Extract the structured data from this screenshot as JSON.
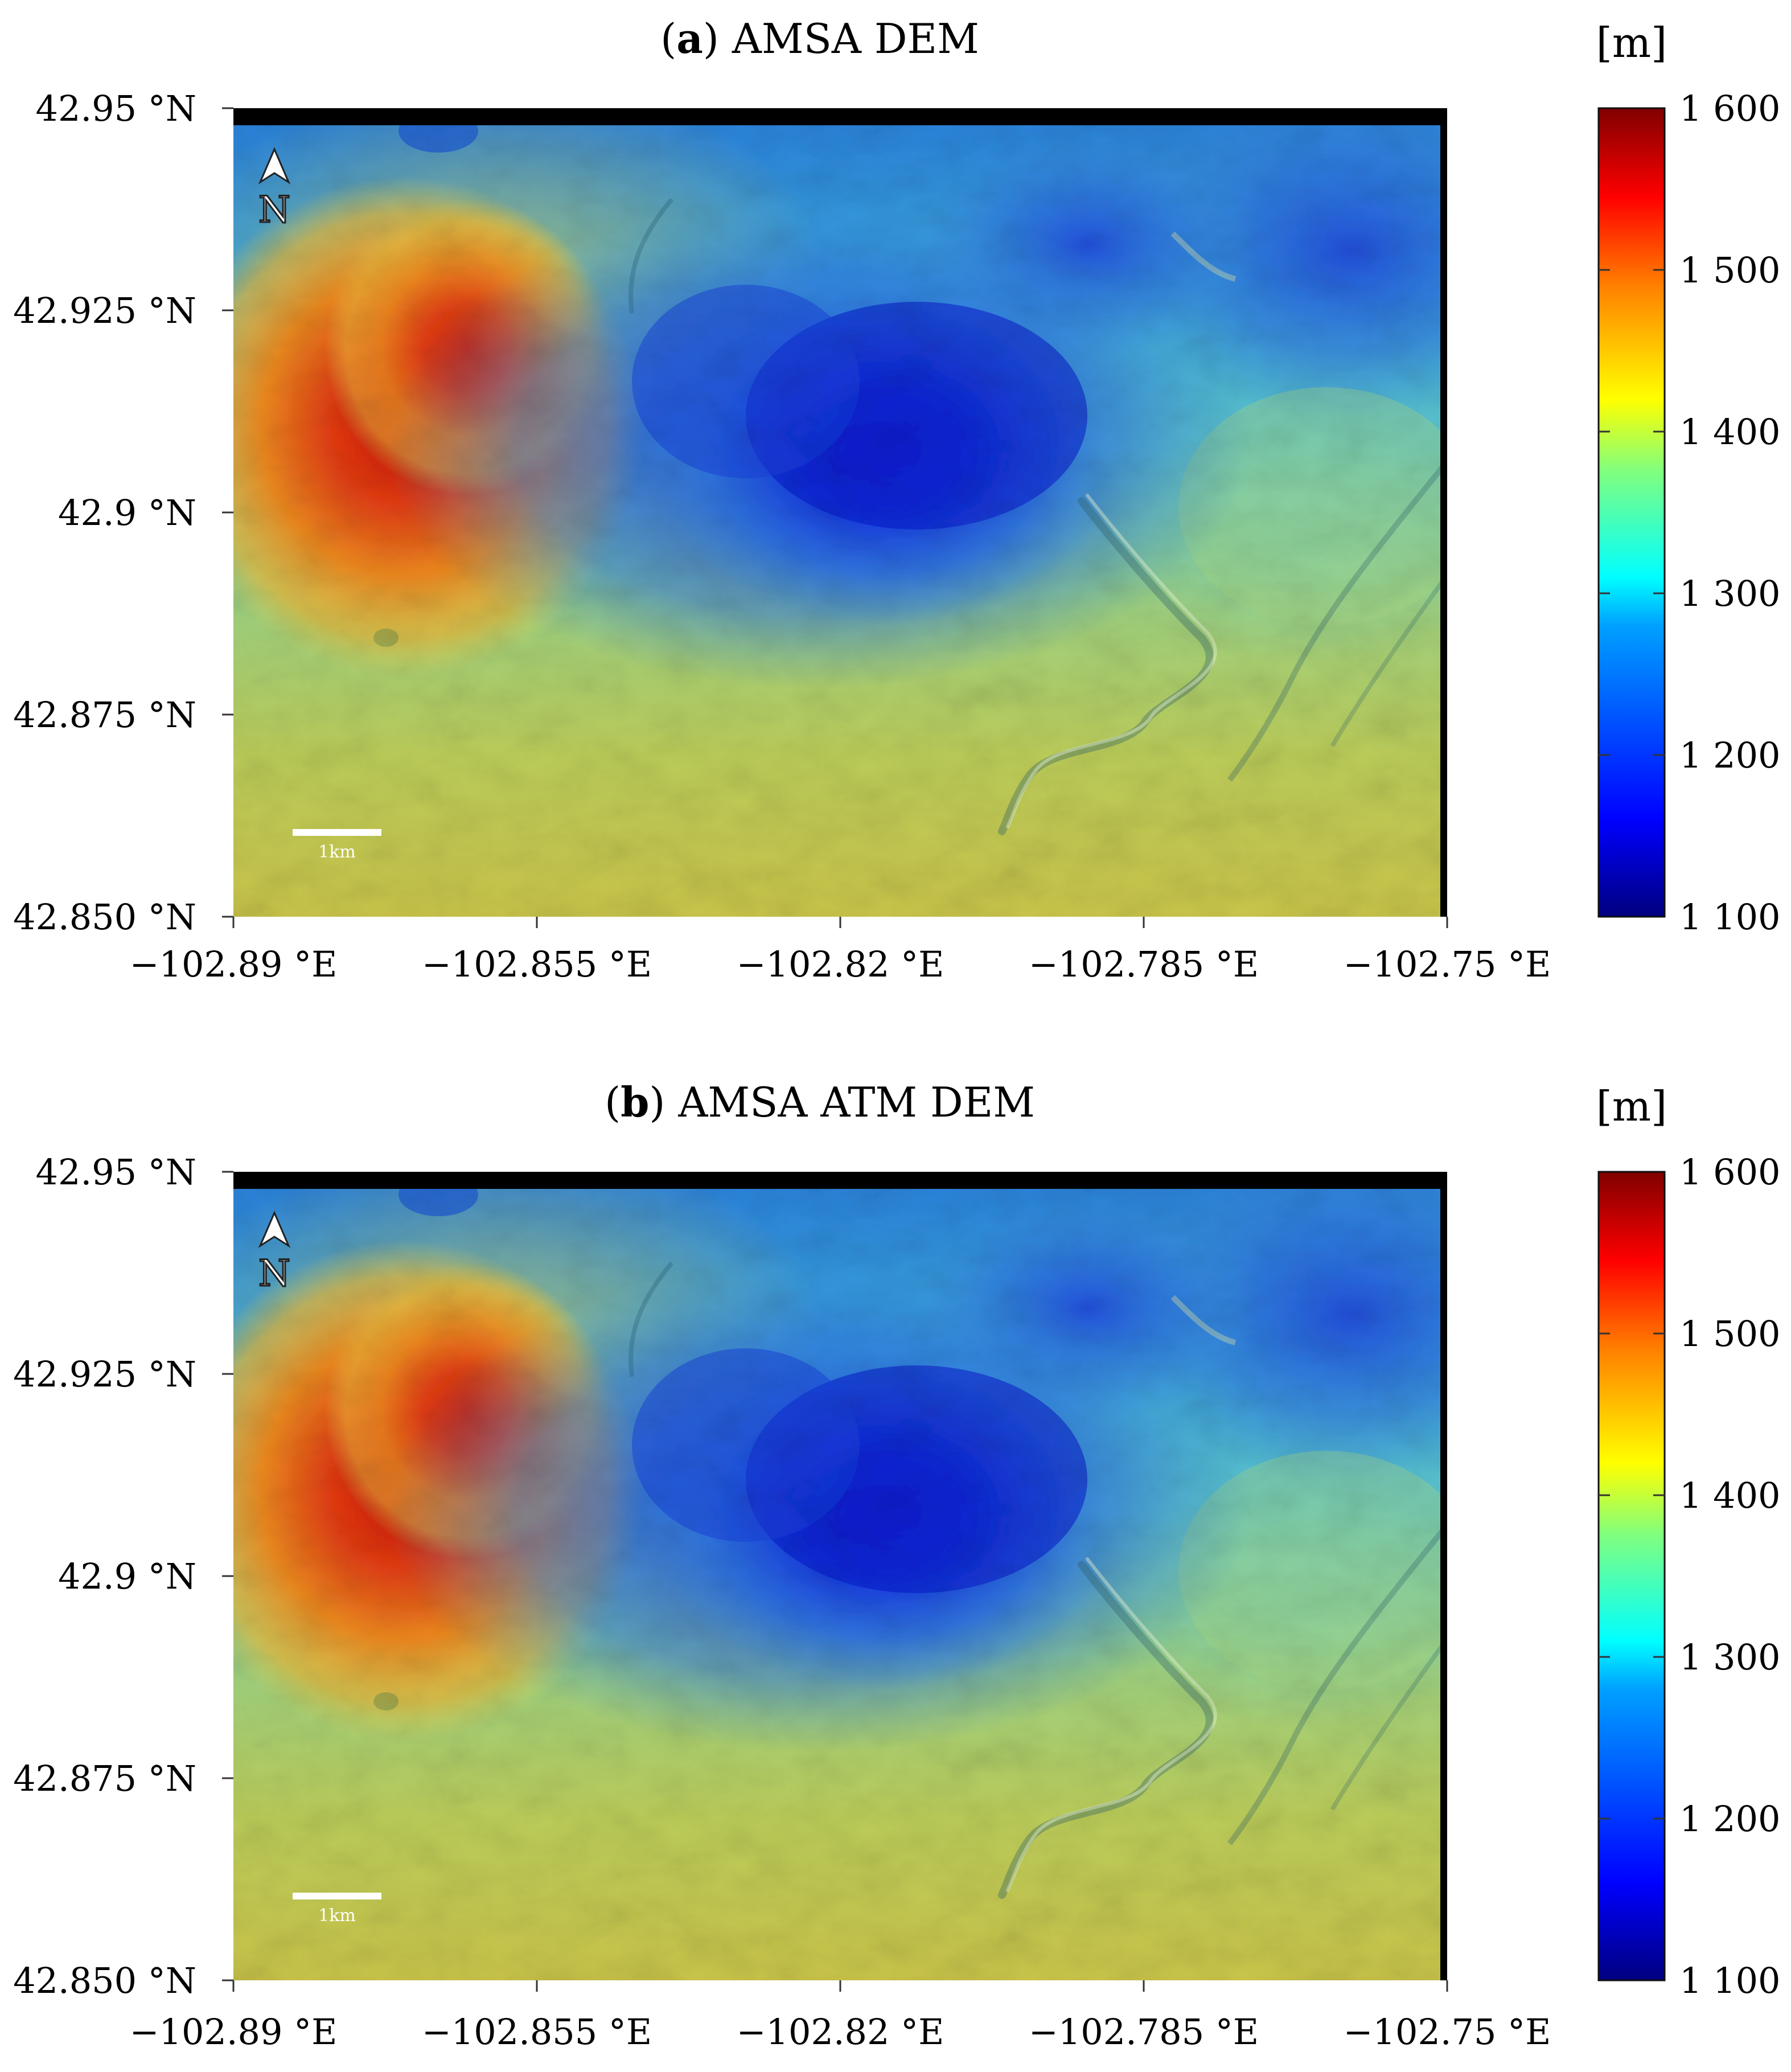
{
  "panels": [
    {
      "id": "a",
      "title_letter": "a",
      "title_rest": "AMSA DEM",
      "unit_label": "[m]",
      "x_ticks": [
        "−102.89 °E",
        "−102.855 °E",
        "−102.82 °E",
        "−102.785 °E",
        "−102.75 °E"
      ],
      "y_ticks": [
        "42.95 °N",
        "42.925 °N",
        "42.9 °N",
        "42.875 °N",
        "42.850 °N"
      ],
      "colorbar_ticks": [
        "1 600",
        "1 500",
        "1 400",
        "1 300",
        "1 200",
        "1 100"
      ],
      "north_label": "N",
      "scale_bar_label": "1km"
    },
    {
      "id": "b",
      "title_letter": "b",
      "title_rest": "AMSA ATM DEM",
      "unit_label": "[m]",
      "x_ticks": [
        "−102.89 °E",
        "−102.855 °E",
        "−102.82 °E",
        "−102.785 °E",
        "−102.75 °E"
      ],
      "y_ticks": [
        "42.95 °N",
        "42.925 °N",
        "42.9 °N",
        "42.875 °N",
        "42.850 °N"
      ],
      "colorbar_ticks": [
        "1 600",
        "1 500",
        "1 400",
        "1 300",
        "1 200",
        "1 100"
      ],
      "north_label": "N",
      "scale_bar_label": "1km"
    }
  ],
  "colormap": [
    "#00007f",
    "#0000ff",
    "#007fff",
    "#00ffff",
    "#7fff7f",
    "#ffff00",
    "#ff7f00",
    "#ff0000",
    "#7f0000"
  ],
  "no_data_color": "#000000"
}
